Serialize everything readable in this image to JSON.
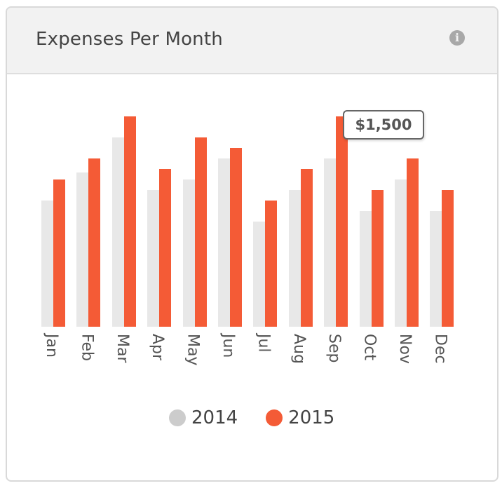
{
  "card": {
    "title": "Expenses Per Month",
    "info_icon": "info-circle-icon"
  },
  "tooltip": {
    "text": "$1,500",
    "month": "Sep",
    "series": "2015"
  },
  "legend": [
    {
      "label": "2014",
      "color": "#cccccc"
    },
    {
      "label": "2015",
      "color": "#f45b36"
    }
  ],
  "colors": {
    "bar_2014": "#e8e8e8",
    "bar_2015": "#f45b36",
    "header_bg": "#f2f2f2"
  },
  "chart_data": {
    "type": "bar",
    "title": "Expenses Per Month",
    "xlabel": "",
    "ylabel": "",
    "categories": [
      "Jan",
      "Feb",
      "Mar",
      "Apr",
      "May",
      "Jun",
      "Jul",
      "Aug",
      "Sep",
      "Oct",
      "Nov",
      "Dec"
    ],
    "series": [
      {
        "name": "2014",
        "values": [
          900,
          1100,
          1350,
          975,
          1050,
          1200,
          750,
          975,
          1200,
          825,
          1050,
          825
        ]
      },
      {
        "name": "2015",
        "values": [
          1050,
          1200,
          1500,
          1125,
          1350,
          1275,
          900,
          1125,
          1500,
          975,
          1200,
          975
        ]
      }
    ],
    "ylim": [
      0,
      1500
    ],
    "grid": false,
    "legend_position": "bottom",
    "annotations": [
      {
        "text": "$1,500",
        "category": "Sep",
        "series": "2015"
      }
    ]
  }
}
